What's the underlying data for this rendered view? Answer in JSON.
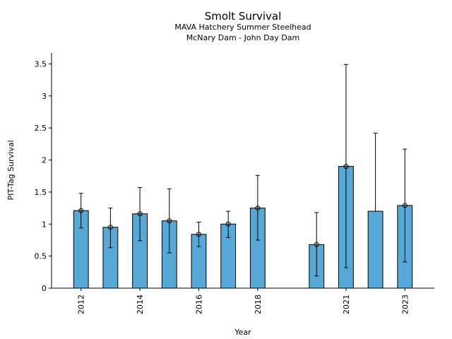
{
  "chart_data": {
    "type": "bar",
    "title": "Smolt Survival",
    "subtitle_lines": [
      "MAVA Hatchery Summer Steelhead",
      "McNary Dam - John Day Dam"
    ],
    "xlabel": "Year",
    "ylabel": "PIT-Tag Survival",
    "xlim": [
      2011,
      2024
    ],
    "ylim": [
      0,
      3.67
    ],
    "x_ticks": [
      2012,
      2014,
      2016,
      2018,
      2021,
      2023
    ],
    "y_ticks": [
      {
        "value": 0,
        "label": "0"
      },
      {
        "value": 0.5,
        "label": "0.5"
      },
      {
        "value": 1,
        "label": "1"
      },
      {
        "value": 1.5,
        "label": "1.5"
      },
      {
        "value": 2,
        "label": "2"
      },
      {
        "value": 2.5,
        "label": "2.5"
      },
      {
        "value": 3,
        "label": "3"
      },
      {
        "value": 3.5,
        "label": "3.5"
      }
    ],
    "bar_color": "#56a8d6",
    "bars": [
      {
        "x": 2012,
        "value": 1.21,
        "lower": 0.94,
        "upper": 1.48,
        "marker": true
      },
      {
        "x": 2013,
        "value": 0.95,
        "lower": 0.63,
        "upper": 1.25,
        "marker": true
      },
      {
        "x": 2014,
        "value": 1.16,
        "lower": 0.74,
        "upper": 1.57,
        "marker": true
      },
      {
        "x": 2015,
        "value": 1.05,
        "lower": 0.55,
        "upper": 1.55,
        "marker": true
      },
      {
        "x": 2016,
        "value": 0.84,
        "lower": 0.65,
        "upper": 1.03,
        "marker": true
      },
      {
        "x": 2017,
        "value": 1.0,
        "lower": 0.79,
        "upper": 1.2,
        "marker": true
      },
      {
        "x": 2018,
        "value": 1.25,
        "lower": 0.75,
        "upper": 1.76,
        "marker": true
      },
      {
        "x": 2020,
        "value": 0.68,
        "lower": 0.19,
        "upper": 1.18,
        "marker": true
      },
      {
        "x": 2021,
        "value": 1.9,
        "lower": 0.32,
        "upper": 3.49,
        "marker": true
      },
      {
        "x": 2022,
        "value": 1.2,
        "lower": null,
        "upper": 2.42,
        "marker": false
      },
      {
        "x": 2023,
        "value": 1.29,
        "lower": 0.41,
        "upper": 2.17,
        "marker": true
      }
    ]
  }
}
